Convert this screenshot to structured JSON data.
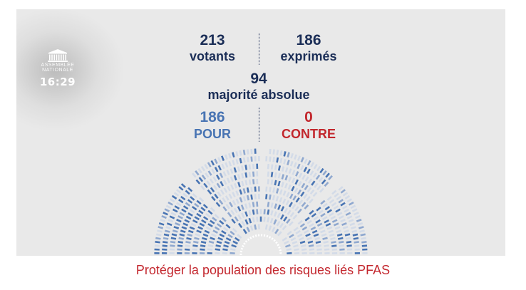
{
  "logo": {
    "line1": "ASSEMBLÉE",
    "line2": "NATIONALE",
    "time": "16:29"
  },
  "vote": {
    "votants_value": "213",
    "votants_label": "votants",
    "exprimes_value": "186",
    "exprimes_label": "exprimés",
    "majorite_value": "94",
    "majorite_label": "majorité absolue",
    "pour_value": "186",
    "pour_label": "POUR",
    "contre_value": "0",
    "contre_label": "CONTRE"
  },
  "colors": {
    "navy": "#1b2e57",
    "pour": "#4874b3",
    "contre": "#c2272d",
    "caption": "#c3272e"
  },
  "caption": "Protéger la population des risques liés PFAS"
}
